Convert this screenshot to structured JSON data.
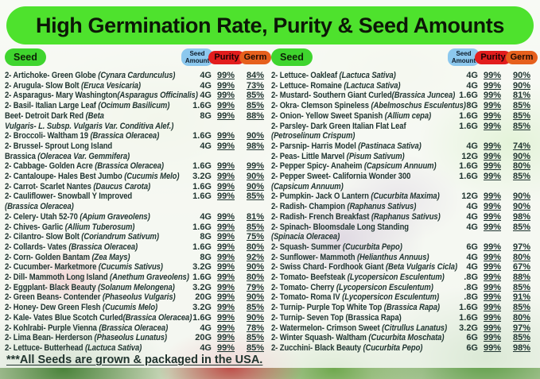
{
  "title": "High Germination Rate, Purity & Seed Amounts",
  "header": {
    "seed": "Seed",
    "amount": "Seed Amount",
    "purity": "Purity",
    "germ": "Germ"
  },
  "footer": "***All Seeds are grown & packaged in the USA.",
  "colors": {
    "banner_green": "#4ee22d",
    "seed_badge_green": "#3fd52e",
    "amount_badge_blue": "#8cc8ee",
    "purity_badge_red": "#e21d1d",
    "germ_badge_orange": "#e6601d",
    "row_text": "#203531"
  },
  "columns": [
    {
      "side": "left",
      "rows": [
        {
          "n": "2- Artichoke- Green Globe ",
          "s": "(Cynara Cardunculus)",
          "amt": "4G",
          "pur": "99%",
          "germ": "84%"
        },
        {
          "n": "2- Arugula- Slow Bolt ",
          "s": "(Eruca Vesicaria)",
          "amt": "4G",
          "pur": "99%",
          "germ": "73%"
        },
        {
          "n": "2- Asparagus- Mary Washington",
          "s": "(Asparagus Officinalis)",
          "amt": "4G",
          "pur": "99%",
          "germ": "85%"
        },
        {
          "n": "2- Basil- Italian Large Leaf ",
          "s": "(Ocimum Basilicum)",
          "amt": "1.6G",
          "pur": "99%",
          "germ": "85%"
        },
        {
          "n": "Beet- Detroit Dark Red ",
          "s": "(Beta",
          "s2": "Vulgaris- L. Subsp. Vulgaris Var. Conditiva Alef.)",
          "amt": "8G",
          "pur": "99%",
          "germ": "88%"
        },
        {
          "n": "2- Broccoli- Waltham 19 ",
          "s": "(Brassica Oleracea)",
          "amt": "1.6G",
          "pur": "99%",
          "germ": "90%"
        },
        {
          "n": "2- Brussel- Sprout Long Island",
          "n2": "Brassica ",
          "s2": "(Oleracea Var. Gemmifera)",
          "amt": "4G",
          "pur": "99%",
          "germ": "98%"
        },
        {
          "n": "2- Cabbage- Golden Acre ",
          "s": "(Brassica Oleracea)",
          "amt": "1.6G",
          "pur": "99%",
          "germ": "99%"
        },
        {
          "n": "2- Cantaloupe- Hales Best Jumbo ",
          "s": "(Cucumis Melo)",
          "amt": "3.2G",
          "pur": "99%",
          "germ": "90%"
        },
        {
          "n": "2- Carrot- Scarlet Nantes ",
          "s": "(Daucus Carota)",
          "amt": "1.6G",
          "pur": "99%",
          "germ": "90%"
        },
        {
          "n": "2- Cauliflower- Snowball Y Improved",
          "s2": "(Brassica Oleracea)",
          "amt": "1.6G",
          "pur": "99%",
          "germ": "85%"
        },
        {
          "n": "2- Celery- Utah 52-70 ",
          "s": "(Apium Graveolens)",
          "amt": "4G",
          "pur": "99%",
          "germ": "81%"
        },
        {
          "n": "2- Chives- Garlic ",
          "s": "(Allium Tuberosum)",
          "amt": "1.6G",
          "pur": "99%",
          "germ": "85%"
        },
        {
          "n": "2- Cilantro- Slow Bolt ",
          "s": "(Coriandrum Sativum)",
          "amt": "8G",
          "pur": "99%",
          "germ": "75%"
        },
        {
          "n": "2- Collards- Vates ",
          "s": "(Brassica Oleracea)",
          "amt": "1.6G",
          "pur": "99%",
          "germ": "80%"
        },
        {
          "n": "2- Corn- Golden Bantam ",
          "s": "(Zea Mays)",
          "amt": "8G",
          "pur": "99%",
          "germ": "92%"
        },
        {
          "n": "2- Cucumber- Marketmore ",
          "s": "(Cucumis Sativus)",
          "amt": "3.2G",
          "pur": "99%",
          "germ": "90%"
        },
        {
          "n": "2- Dill- Mammoth Long Island ",
          "s": "(Anethum Graveolens)",
          "amt": "1.6G",
          "pur": "99%",
          "germ": "80%"
        },
        {
          "n": "2- Eggplant- Black Beauty ",
          "s": "(Solanum Melongena)",
          "amt": "3.2G",
          "pur": "99%",
          "germ": "79%"
        },
        {
          "n": "2- Green Beans- Contender ",
          "s": "(Phaseolus Vulgaris)",
          "amt": "20G",
          "pur": "99%",
          "germ": "90%"
        },
        {
          "n": "2- Honey- Dew Green Flesh ",
          "s": "(Cucumis Melo)",
          "amt": "3.2G",
          "pur": "99%",
          "germ": "85%"
        },
        {
          "n": "2- Kale- Vates Blue Scotch Curled",
          "s": "(Brassica Oleracea)",
          "amt": "1.6G",
          "pur": "99%",
          "germ": "90%"
        },
        {
          "n": "2- Kohlrabi- Purple Vienna ",
          "s": "(Brassica Oleracea)",
          "amt": "4G",
          "pur": "99%",
          "germ": "78%"
        },
        {
          "n": "2- Lima Bean- Herderson ",
          "s": "(Phaseolus Lunatus)",
          "amt": "20G",
          "pur": "99%",
          "germ": "85%"
        },
        {
          "n": "2- Lettuce- Butterhead ",
          "s": "(Lactuca Sativa)",
          "amt": "4G",
          "pur": "99%",
          "germ": "85%"
        }
      ]
    },
    {
      "side": "right",
      "rows": [
        {
          "n": "2- Lettuce- Oakleaf ",
          "s": "(Lactuca Sativa)",
          "amt": "4G",
          "pur": "99%",
          "germ": "90%"
        },
        {
          "n": "2- Lettuce- Romaine ",
          "s": "(Lactuca Sativa)",
          "amt": "4G",
          "pur": "99%",
          "germ": "90%"
        },
        {
          "n": "2- Mustard- Southern Giant Curled",
          "s": "(Brassica Juncea)",
          "amt": "1.6G",
          "pur": "99%",
          "germ": "81%"
        },
        {
          "n": "2- Okra- Clemson Spineless ",
          "s": "(Abelmoschus Esculentus)",
          "amt": "8G",
          "pur": "99%",
          "germ": "85%"
        },
        {
          "n": "2- Onion- Yellow Sweet Spanish ",
          "s": "(Allium cepa)",
          "amt": "1.6G",
          "pur": "99%",
          "germ": "85%"
        },
        {
          "n": "2- Parsley- Dark Green Italian Flat Leaf",
          "s2": "(Petroselinum Crispum)",
          "amt": "1.6G",
          "pur": "99%",
          "germ": "85%"
        },
        {
          "n": "2- Parsnip- Harris Model ",
          "s": "(Pastinaca Sativa)",
          "amt": "4G",
          "pur": "99%",
          "germ": "74%"
        },
        {
          "n": "2- Peas- Little Marvel ",
          "s": "(Pisum Sativum)",
          "amt": "12G",
          "pur": "99%",
          "germ": "90%"
        },
        {
          "n": "2- Pepper Spicy- Anaheim ",
          "s": "(Capsicum Annuum)",
          "amt": "1.6G",
          "pur": "99%",
          "germ": "80%"
        },
        {
          "n": "2- Pepper Sweet- California Wonder 300",
          "s2": "(Capsicum Annuum)",
          "amt": "1.6G",
          "pur": "99%",
          "germ": "85%"
        },
        {
          "n": "2- Pumpkin- Jack O Lantern ",
          "s": "(Cucurbita Maxima)",
          "amt": "12G",
          "pur": "99%",
          "germ": "90%"
        },
        {
          "n": "2- Radish- Champion ",
          "s": "(Raphanus Sativus)",
          "amt": "4G",
          "pur": "99%",
          "germ": "90%"
        },
        {
          "n": "2- Radish- French Breakfast ",
          "s": "(Raphanus Sativus)",
          "amt": "4G",
          "pur": "99%",
          "germ": "98%"
        },
        {
          "n": "2- Spinach- Bloomsdale Long Standing",
          "s2": "(Spinacia Oleracea)",
          "amt": "4G",
          "pur": "99%",
          "germ": "85%"
        },
        {
          "n": "2- Squash- Summer ",
          "s": "(Cucurbita Pepo)",
          "amt": "6G",
          "pur": "99%",
          "germ": "97%"
        },
        {
          "n": "2- Sunflower- Mammoth ",
          "s": "(Helianthus Annuus)",
          "amt": "4G",
          "pur": "99%",
          "germ": "80%"
        },
        {
          "n": "2- Swiss Chard- Fordhook Giant ",
          "s": "(Beta Vulgaris Cicla)",
          "amt": "4G",
          "pur": "99%",
          "germ": "67%"
        },
        {
          "n": "2- Tomato- Beefsteak ",
          "s": "(Lycopersicon Esculentum)",
          "amt": ".8G",
          "pur": "99%",
          "germ": "88%"
        },
        {
          "n": "2- Tomato- Cherry ",
          "s": "(Lycopersicon Esculentum)",
          "amt": ".8G",
          "pur": "99%",
          "germ": "85%"
        },
        {
          "n": "2- Tomato- Roma IV ",
          "s": "(Lycopersicon Esculentum)",
          "amt": ".8G",
          "pur": "99%",
          "germ": "91%"
        },
        {
          "n": "2- Turnip- Purple Top White Top ",
          "s": "(Brassica Rapa)",
          "amt": "1.6G",
          "pur": "99%",
          "germ": "85%"
        },
        {
          "n": "2- Turnip- Seven Top (Brassica Rapa)",
          "amt": "1.6G",
          "pur": "99%",
          "germ": "80%"
        },
        {
          "n": "2- Watermelon- Crimson Sweet ",
          "s": "(Citrullus Lanatus)",
          "amt": "3.2G",
          "pur": "99%",
          "germ": "97%"
        },
        {
          "n": "2- Winter Squash- Waltham ",
          "s": "(Cucurbita Moschata)",
          "amt": "6G",
          "pur": "99%",
          "germ": "85%"
        },
        {
          "n": "2- Zucchini-  Black Beauty ",
          "s": "(Cucurbita Pepo)",
          "amt": "6G",
          "pur": "99%",
          "germ": "98%"
        }
      ]
    }
  ]
}
